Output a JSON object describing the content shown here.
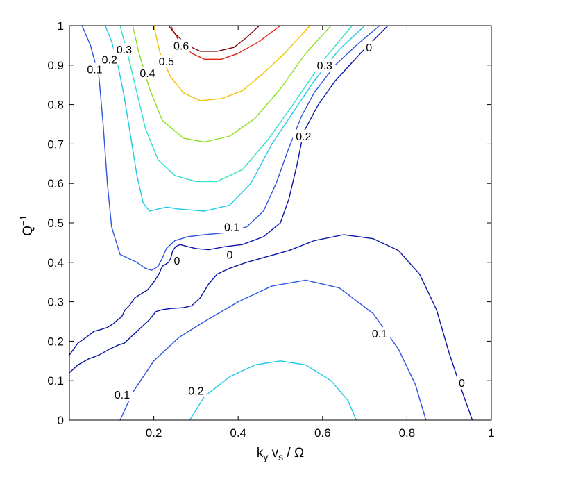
{
  "chart_data": {
    "type": "contour",
    "title": "",
    "xlabel": {
      "main": "k",
      "sub1": "y",
      "mid": " v",
      "sub2": "s",
      "tail": " / Ω"
    },
    "ylabel": {
      "main": "Q",
      "sup": "−1"
    },
    "xlim": [
      0,
      1
    ],
    "ylim": [
      0,
      1
    ],
    "x_ticks": [
      0.2,
      0.4,
      0.6,
      0.8,
      1
    ],
    "x_tick_labels": [
      "0.2",
      "0.4",
      "0.6",
      "0.8",
      "1"
    ],
    "y_ticks": [
      0,
      0.1,
      0.2,
      0.3,
      0.4,
      0.5,
      0.6,
      0.7,
      0.8,
      0.9,
      1
    ],
    "y_tick_labels": [
      "0",
      "0.1",
      "0.2",
      "0.3",
      "0.4",
      "0.5",
      "0.6",
      "0.7",
      "0.8",
      "0.9",
      "1"
    ],
    "grid": false,
    "levels": [
      {
        "level": "0",
        "color": "#0a14a6"
      },
      {
        "level": "0.1",
        "color": "#2d55e0"
      },
      {
        "level": "0.2",
        "color": "#1ec8e8"
      },
      {
        "level": "0.3",
        "color": "#2ee0c8"
      },
      {
        "level": "0.4",
        "color": "#8de020"
      },
      {
        "level": "0.5",
        "color": "#f0c000"
      },
      {
        "level": "0.6",
        "color": "#e82010"
      },
      {
        "level": "0.7",
        "color": "#7a0a0a"
      }
    ],
    "contours": [
      {
        "level": "0",
        "color": "#0a14a6",
        "points": [
          [
            0.755,
            1.0
          ],
          [
            0.69,
            0.93
          ],
          [
            0.63,
            0.86
          ],
          [
            0.59,
            0.8
          ],
          [
            0.555,
            0.73
          ],
          [
            0.54,
            0.65
          ],
          [
            0.52,
            0.56
          ],
          [
            0.5,
            0.5
          ],
          [
            0.46,
            0.465
          ],
          [
            0.41,
            0.445
          ],
          [
            0.37,
            0.44
          ],
          [
            0.33,
            0.432
          ],
          [
            0.3,
            0.435
          ],
          [
            0.28,
            0.44
          ],
          [
            0.262,
            0.445
          ],
          [
            0.252,
            0.44
          ],
          [
            0.245,
            0.43
          ],
          [
            0.24,
            0.41
          ],
          [
            0.235,
            0.4
          ],
          [
            0.228,
            0.395
          ],
          [
            0.22,
            0.39
          ],
          [
            0.212,
            0.37
          ],
          [
            0.2,
            0.35
          ],
          [
            0.185,
            0.33
          ],
          [
            0.17,
            0.32
          ],
          [
            0.155,
            0.31
          ],
          [
            0.142,
            0.29
          ],
          [
            0.132,
            0.28
          ],
          [
            0.124,
            0.262
          ],
          [
            0.115,
            0.255
          ],
          [
            0.105,
            0.245
          ],
          [
            0.09,
            0.235
          ],
          [
            0.075,
            0.23
          ],
          [
            0.058,
            0.225
          ],
          [
            0.04,
            0.21
          ],
          [
            0.02,
            0.195
          ],
          [
            0.0,
            0.165
          ]
        ]
      },
      {
        "level": "0",
        "color": "#0a14a6",
        "points": [
          [
            0.0,
            0.12
          ],
          [
            0.02,
            0.14
          ],
          [
            0.045,
            0.155
          ],
          [
            0.07,
            0.165
          ],
          [
            0.095,
            0.18
          ],
          [
            0.115,
            0.19
          ],
          [
            0.13,
            0.195
          ],
          [
            0.145,
            0.21
          ],
          [
            0.16,
            0.225
          ],
          [
            0.175,
            0.24
          ],
          [
            0.19,
            0.255
          ],
          [
            0.205,
            0.275
          ],
          [
            0.22,
            0.28
          ],
          [
            0.24,
            0.283
          ],
          [
            0.27,
            0.285
          ],
          [
            0.29,
            0.29
          ],
          [
            0.31,
            0.31
          ],
          [
            0.33,
            0.345
          ],
          [
            0.35,
            0.37
          ],
          [
            0.38,
            0.385
          ],
          [
            0.42,
            0.4
          ],
          [
            0.47,
            0.415
          ],
          [
            0.52,
            0.43
          ],
          [
            0.58,
            0.455
          ],
          [
            0.65,
            0.47
          ],
          [
            0.72,
            0.46
          ],
          [
            0.78,
            0.43
          ],
          [
            0.83,
            0.37
          ],
          [
            0.87,
            0.28
          ],
          [
            0.9,
            0.17
          ],
          [
            0.925,
            0.09
          ],
          [
            0.955,
            0.0
          ]
        ]
      },
      {
        "level": "0.1",
        "color": "#2d55e0",
        "points": [
          [
            0.735,
            1.0
          ],
          [
            0.68,
            0.95
          ],
          [
            0.63,
            0.9
          ],
          [
            0.58,
            0.83
          ],
          [
            0.55,
            0.77
          ],
          [
            0.52,
            0.69
          ],
          [
            0.49,
            0.6
          ],
          [
            0.46,
            0.53
          ],
          [
            0.42,
            0.49
          ],
          [
            0.37,
            0.475
          ],
          [
            0.32,
            0.47
          ],
          [
            0.28,
            0.465
          ],
          [
            0.25,
            0.455
          ],
          [
            0.23,
            0.435
          ],
          [
            0.22,
            0.41
          ],
          [
            0.21,
            0.39
          ],
          [
            0.195,
            0.38
          ],
          [
            0.18,
            0.385
          ],
          [
            0.16,
            0.4
          ],
          [
            0.14,
            0.41
          ],
          [
            0.12,
            0.42
          ],
          [
            0.1,
            0.49
          ],
          [
            0.09,
            0.6
          ],
          [
            0.08,
            0.75
          ],
          [
            0.07,
            0.87
          ],
          [
            0.05,
            0.95
          ],
          [
            0.03,
            1.0
          ]
        ]
      },
      {
        "level": "0.1",
        "color": "#2d55e0",
        "points": [
          [
            0.12,
            0.0
          ],
          [
            0.15,
            0.07
          ],
          [
            0.2,
            0.15
          ],
          [
            0.26,
            0.21
          ],
          [
            0.32,
            0.25
          ],
          [
            0.4,
            0.3
          ],
          [
            0.48,
            0.34
          ],
          [
            0.56,
            0.355
          ],
          [
            0.64,
            0.335
          ],
          [
            0.72,
            0.27
          ],
          [
            0.78,
            0.18
          ],
          [
            0.82,
            0.09
          ],
          [
            0.845,
            0.0
          ]
        ]
      },
      {
        "level": "0.2",
        "color": "#1ec8e8",
        "points": [
          [
            0.7,
            1.0
          ],
          [
            0.64,
            0.94
          ],
          [
            0.58,
            0.86
          ],
          [
            0.53,
            0.78
          ],
          [
            0.48,
            0.7
          ],
          [
            0.43,
            0.6
          ],
          [
            0.38,
            0.545
          ],
          [
            0.32,
            0.53
          ],
          [
            0.26,
            0.535
          ],
          [
            0.23,
            0.54
          ],
          [
            0.21,
            0.535
          ],
          [
            0.19,
            0.53
          ],
          [
            0.175,
            0.55
          ],
          [
            0.16,
            0.62
          ],
          [
            0.145,
            0.72
          ],
          [
            0.13,
            0.82
          ],
          [
            0.115,
            0.9
          ],
          [
            0.1,
            0.96
          ],
          [
            0.085,
            1.0
          ]
        ]
      },
      {
        "level": "0.2",
        "color": "#1ec8e8",
        "points": [
          [
            0.285,
            0.0
          ],
          [
            0.32,
            0.06
          ],
          [
            0.38,
            0.11
          ],
          [
            0.44,
            0.14
          ],
          [
            0.5,
            0.15
          ],
          [
            0.56,
            0.14
          ],
          [
            0.62,
            0.1
          ],
          [
            0.66,
            0.05
          ],
          [
            0.68,
            0.0
          ]
        ]
      },
      {
        "level": "0.3",
        "color": "#2ee0c8",
        "points": [
          [
            0.67,
            1.0
          ],
          [
            0.6,
            0.91
          ],
          [
            0.53,
            0.8
          ],
          [
            0.47,
            0.71
          ],
          [
            0.41,
            0.635
          ],
          [
            0.35,
            0.605
          ],
          [
            0.3,
            0.605
          ],
          [
            0.25,
            0.62
          ],
          [
            0.21,
            0.66
          ],
          [
            0.18,
            0.74
          ],
          [
            0.16,
            0.83
          ],
          [
            0.14,
            0.92
          ],
          [
            0.12,
            1.0
          ]
        ]
      },
      {
        "level": "0.4",
        "color": "#8de020",
        "points": [
          [
            0.62,
            1.0
          ],
          [
            0.56,
            0.93
          ],
          [
            0.5,
            0.84
          ],
          [
            0.44,
            0.765
          ],
          [
            0.38,
            0.72
          ],
          [
            0.32,
            0.705
          ],
          [
            0.27,
            0.715
          ],
          [
            0.22,
            0.76
          ],
          [
            0.19,
            0.84
          ],
          [
            0.165,
            0.93
          ],
          [
            0.15,
            1.0
          ]
        ]
      },
      {
        "level": "0.5",
        "color": "#f0c000",
        "points": [
          [
            0.57,
            1.0
          ],
          [
            0.51,
            0.93
          ],
          [
            0.46,
            0.88
          ],
          [
            0.41,
            0.835
          ],
          [
            0.36,
            0.815
          ],
          [
            0.31,
            0.81
          ],
          [
            0.27,
            0.83
          ],
          [
            0.24,
            0.87
          ],
          [
            0.215,
            0.93
          ],
          [
            0.2,
            1.0
          ]
        ]
      },
      {
        "level": "0.6",
        "color": "#e82010",
        "points": [
          [
            0.5,
            1.0
          ],
          [
            0.45,
            0.96
          ],
          [
            0.4,
            0.93
          ],
          [
            0.36,
            0.915
          ],
          [
            0.32,
            0.915
          ],
          [
            0.29,
            0.93
          ],
          [
            0.26,
            0.96
          ],
          [
            0.24,
            1.0
          ]
        ]
      },
      {
        "level": "0.7",
        "color": "#7a0a0a",
        "points": [
          [
            0.45,
            1.0
          ],
          [
            0.42,
            0.97
          ],
          [
            0.39,
            0.945
          ],
          [
            0.35,
            0.935
          ],
          [
            0.31,
            0.935
          ],
          [
            0.28,
            0.95
          ],
          [
            0.25,
            0.98
          ],
          [
            0.235,
            1.0
          ]
        ]
      }
    ],
    "contour_labels": [
      {
        "text": "0",
        "x": 0.71,
        "y": 0.945
      },
      {
        "text": "0.3",
        "x": 0.605,
        "y": 0.9
      },
      {
        "text": "0.2",
        "x": 0.555,
        "y": 0.72
      },
      {
        "text": "0.1",
        "x": 0.385,
        "y": 0.49
      },
      {
        "text": "0",
        "x": 0.38,
        "y": 0.42
      },
      {
        "text": "0",
        "x": 0.255,
        "y": 0.405
      },
      {
        "text": "0.1",
        "x": 0.06,
        "y": 0.89
      },
      {
        "text": "0.2",
        "x": 0.095,
        "y": 0.915
      },
      {
        "text": "0.3",
        "x": 0.13,
        "y": 0.94
      },
      {
        "text": "0.4",
        "x": 0.185,
        "y": 0.88
      },
      {
        "text": "0.5",
        "x": 0.23,
        "y": 0.91
      },
      {
        "text": "0.6",
        "x": 0.265,
        "y": 0.95
      },
      {
        "text": "0.1",
        "x": 0.735,
        "y": 0.22
      },
      {
        "text": "0",
        "x": 0.93,
        "y": 0.095
      },
      {
        "text": "0.1",
        "x": 0.125,
        "y": 0.065
      },
      {
        "text": "0.2",
        "x": 0.3,
        "y": 0.075
      }
    ]
  }
}
